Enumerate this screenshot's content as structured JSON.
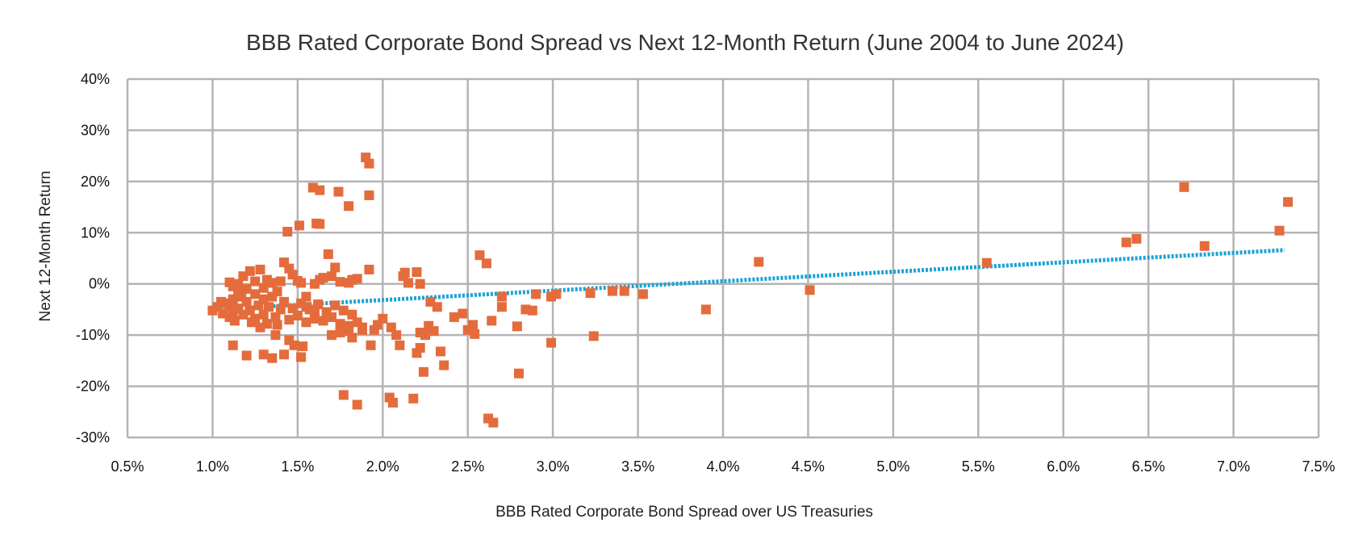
{
  "chart_data": {
    "type": "scatter",
    "title": "BBB Rated Corporate Bond Spread vs Next 12-Month Return (June 2004 to June 2024)",
    "xlabel": "BBB Rated Corporate Bond Spread over US Treasuries",
    "ylabel": "Next 12-Month Return",
    "xlim": [
      0.5,
      7.5
    ],
    "ylim": [
      -30,
      40
    ],
    "x_ticks": [
      0.5,
      1.0,
      1.5,
      2.0,
      2.5,
      3.0,
      3.5,
      4.0,
      4.5,
      5.0,
      5.5,
      6.0,
      6.5,
      7.0,
      7.5
    ],
    "x_tick_labels": [
      "0.5%",
      "1.0%",
      "1.5%",
      "2.0%",
      "2.5%",
      "3.0%",
      "3.5%",
      "4.0%",
      "4.5%",
      "5.0%",
      "5.5%",
      "6.0%",
      "6.5%",
      "7.0%",
      "7.5%"
    ],
    "y_ticks": [
      40,
      30,
      20,
      10,
      0,
      -10,
      -20,
      -30
    ],
    "y_tick_labels": [
      "40%",
      "30%",
      "20%",
      "10%",
      "0%",
      "-10%",
      "-20%",
      "-30%"
    ],
    "grid": true,
    "colors": {
      "points": "#e46c3c",
      "trendline": "#1aa3d6",
      "grid": "#b4b4b4"
    },
    "series": [
      {
        "type": "scatter",
        "points": [
          [
            1.0,
            -5.2
          ],
          [
            1.03,
            -4.5
          ],
          [
            1.05,
            -3.5
          ],
          [
            1.06,
            -5.8
          ],
          [
            1.08,
            -3.8
          ],
          [
            1.1,
            -4.5
          ],
          [
            1.1,
            -6.5
          ],
          [
            1.12,
            -3
          ],
          [
            1.12,
            -5.5
          ],
          [
            1.13,
            -7.2
          ],
          [
            1.15,
            -1.5
          ],
          [
            1.15,
            -4.8
          ],
          [
            1.17,
            -2.5
          ],
          [
            1.18,
            -6
          ],
          [
            1.2,
            -3.5
          ],
          [
            1.22,
            -5.2
          ],
          [
            1.23,
            -7.5
          ],
          [
            1.25,
            -2
          ],
          [
            1.25,
            -6.8
          ],
          [
            1.27,
            -4.2
          ],
          [
            1.28,
            -8.5
          ],
          [
            1.3,
            -3
          ],
          [
            1.3,
            -6
          ],
          [
            1.32,
            -7.8
          ],
          [
            1.33,
            -4.5
          ],
          [
            1.35,
            -2.5
          ],
          [
            1.37,
            -6.5
          ],
          [
            1.38,
            -8
          ],
          [
            1.4,
            -5
          ],
          [
            1.42,
            -3.5
          ],
          [
            1.45,
            -7
          ],
          [
            1.47,
            -4.8
          ],
          [
            1.5,
            -6.2
          ],
          [
            1.52,
            -3.8
          ],
          [
            1.55,
            -7.5
          ],
          [
            1.57,
            -5
          ],
          [
            1.6,
            -6.8
          ],
          [
            1.62,
            -4
          ],
          [
            1.65,
            -7.2
          ],
          [
            1.67,
            -5.5
          ],
          [
            1.7,
            -6.5
          ],
          [
            1.72,
            -4.2
          ],
          [
            1.75,
            -7.8
          ],
          [
            1.77,
            -5.2
          ],
          [
            1.8,
            -8.2
          ],
          [
            1.82,
            -6
          ],
          [
            1.85,
            -7.5
          ],
          [
            1.88,
            -9
          ],
          [
            1.6,
            -5.8
          ],
          [
            1.55,
            -4.5
          ],
          [
            1.1,
            0.3
          ],
          [
            1.12,
            -0.5
          ],
          [
            1.15,
            0
          ],
          [
            1.18,
            1.5
          ],
          [
            1.2,
            -1
          ],
          [
            1.22,
            2.5
          ],
          [
            1.25,
            0.5
          ],
          [
            1.28,
            2.8
          ],
          [
            1.3,
            -0.8
          ],
          [
            1.32,
            0.8
          ],
          [
            1.35,
            0.2
          ],
          [
            1.38,
            -1.5
          ],
          [
            1.4,
            0.5
          ],
          [
            1.42,
            4.2
          ],
          [
            1.45,
            3
          ],
          [
            1.47,
            1.8
          ],
          [
            1.5,
            0.6
          ],
          [
            1.52,
            0.2
          ],
          [
            1.55,
            -2.5
          ],
          [
            1.6,
            0
          ],
          [
            1.63,
            0.8
          ],
          [
            1.65,
            1.2
          ],
          [
            1.68,
            5.8
          ],
          [
            1.7,
            1.5
          ],
          [
            1.72,
            3.2
          ],
          [
            1.75,
            0.4
          ],
          [
            1.8,
            0.2
          ],
          [
            1.82,
            0.8
          ],
          [
            1.85,
            1
          ],
          [
            1.92,
            2.8
          ],
          [
            1.12,
            -12
          ],
          [
            1.2,
            -14
          ],
          [
            1.3,
            -13.8
          ],
          [
            1.35,
            -14.5
          ],
          [
            1.37,
            -10
          ],
          [
            1.42,
            -13.8
          ],
          [
            1.45,
            -11
          ],
          [
            1.48,
            -12
          ],
          [
            1.52,
            -14.3
          ],
          [
            1.53,
            -12.2
          ],
          [
            1.7,
            -10
          ],
          [
            1.75,
            -9.5
          ],
          [
            1.8,
            -9.2
          ],
          [
            1.82,
            -10.5
          ],
          [
            1.88,
            -8.5
          ],
          [
            1.93,
            -12
          ],
          [
            1.95,
            -9
          ],
          [
            1.97,
            -8
          ],
          [
            1.77,
            -21.7
          ],
          [
            1.85,
            -23.6
          ],
          [
            2.04,
            -22.2
          ],
          [
            2.06,
            -23.2
          ],
          [
            2.18,
            -22.4
          ],
          [
            1.9,
            24.7
          ],
          [
            1.92,
            23.5
          ],
          [
            1.92,
            17.3
          ],
          [
            1.8,
            15.2
          ],
          [
            1.59,
            18.8
          ],
          [
            1.63,
            18.3
          ],
          [
            1.74,
            18
          ],
          [
            1.61,
            11.8
          ],
          [
            1.63,
            11.7
          ],
          [
            1.51,
            11.4
          ],
          [
            1.44,
            10.2
          ],
          [
            2.0,
            -6.8
          ],
          [
            2.05,
            -8.5
          ],
          [
            2.08,
            -10
          ],
          [
            2.1,
            -12
          ],
          [
            2.12,
            1.5
          ],
          [
            2.13,
            2.2
          ],
          [
            2.15,
            0.2
          ],
          [
            2.2,
            -13.5
          ],
          [
            2.22,
            -12.5
          ],
          [
            2.22,
            -9.5
          ],
          [
            2.24,
            -17.2
          ],
          [
            2.25,
            -10
          ],
          [
            2.27,
            -8.2
          ],
          [
            2.28,
            -3.5
          ],
          [
            2.3,
            -9.2
          ],
          [
            2.32,
            -4.5
          ],
          [
            2.34,
            -13.2
          ],
          [
            2.36,
            -15.9
          ],
          [
            2.2,
            2.3
          ],
          [
            2.22,
            0
          ],
          [
            2.42,
            -6.5
          ],
          [
            2.47,
            -5.8
          ],
          [
            2.5,
            -9
          ],
          [
            2.53,
            -8
          ],
          [
            2.54,
            -9.8
          ],
          [
            2.57,
            5.6
          ],
          [
            2.61,
            4
          ],
          [
            2.62,
            -26.3
          ],
          [
            2.64,
            -7.2
          ],
          [
            2.65,
            -27.1
          ],
          [
            2.7,
            -2.5
          ],
          [
            2.7,
            -4.5
          ],
          [
            2.79,
            -8.3
          ],
          [
            2.8,
            -17.5
          ],
          [
            2.84,
            -5
          ],
          [
            2.88,
            -5.2
          ],
          [
            2.9,
            -2
          ],
          [
            2.99,
            -2.5
          ],
          [
            2.99,
            -11.5
          ],
          [
            3.02,
            -2
          ],
          [
            3.22,
            -1.8
          ],
          [
            3.24,
            -10.2
          ],
          [
            3.35,
            -1.4
          ],
          [
            3.42,
            -1.4
          ],
          [
            3.53,
            -2
          ],
          [
            3.9,
            -5
          ],
          [
            4.21,
            4.3
          ],
          [
            4.51,
            -1.2
          ],
          [
            5.55,
            4.1
          ],
          [
            6.37,
            8.1
          ],
          [
            6.43,
            8.8
          ],
          [
            6.71,
            18.9
          ],
          [
            6.83,
            7.4
          ],
          [
            7.27,
            10.4
          ],
          [
            7.32,
            16
          ]
        ]
      },
      {
        "type": "trendline",
        "points": [
          [
            1.0,
            -5.0
          ],
          [
            7.3,
            6.6
          ]
        ]
      }
    ]
  }
}
